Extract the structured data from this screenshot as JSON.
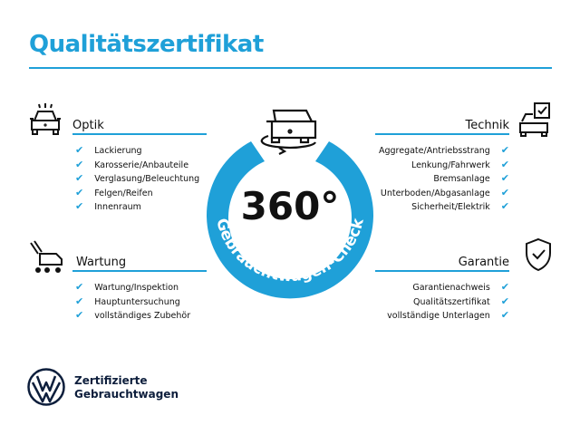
{
  "title": "Qualitätszertifikat",
  "center": {
    "degrees": "360°",
    "ring_text": "Gebrauchtwagen-Check"
  },
  "colors": {
    "accent": "#1fa0d8",
    "brand": "#0d1e3c"
  },
  "sections": {
    "optik": {
      "title": "Optik",
      "icon": "car-lights-icon",
      "items": [
        "Lackierung",
        "Karosserie/Anbauteile",
        "Verglasung/Beleuchtung",
        "Felgen/Reifen",
        "Innenraum"
      ]
    },
    "wartung": {
      "title": "Wartung",
      "icon": "service-cart-icon",
      "items": [
        "Wartung/Inspektion",
        "Hauptuntersuchung",
        "vollständiges Zubehör"
      ]
    },
    "technik": {
      "title": "Technik",
      "icon": "car-check-icon",
      "items": [
        "Aggregate/Antriebsstrang",
        "Lenkung/Fahrwerk",
        "Bremsanlage",
        "Unterboden/Abgasanlage",
        "Sicherheit/Elektrik"
      ]
    },
    "garantie": {
      "title": "Garantie",
      "icon": "shield-check-icon",
      "items": [
        "Garantienachweis",
        "Qualitätszertifikat",
        "vollständige Unterlagen"
      ]
    }
  },
  "footer": {
    "line1": "Zertifizierte",
    "line2": "Gebrauchtwagen"
  }
}
